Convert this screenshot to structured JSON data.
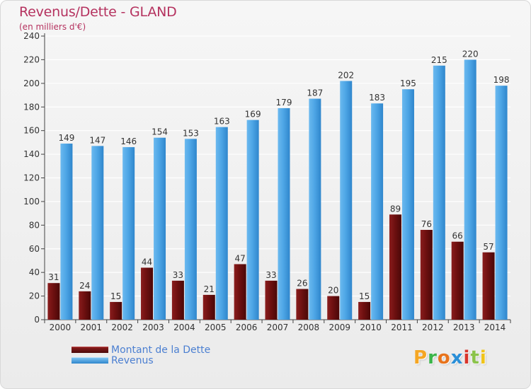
{
  "title": "Revenus/Dette - GLAND",
  "subtitle": "(en milliers d'€)",
  "legend": {
    "debt_label": "Montant de la Dette",
    "revenue_label": "Revenus"
  },
  "logo": {
    "letters": [
      "P",
      "r",
      "o",
      "x",
      "i",
      "t",
      "i"
    ],
    "colors": [
      "#f5a623",
      "#3bb54a",
      "#e8731c",
      "#2a8fd8",
      "#d9352b",
      "#8bc34a",
      "#f0c419"
    ]
  },
  "colors": {
    "debt": "#6e1010",
    "revenue": "#4ea6e6"
  },
  "chart_data": {
    "type": "bar",
    "categories": [
      "2000",
      "2001",
      "2002",
      "2003",
      "2004",
      "2005",
      "2006",
      "2007",
      "2008",
      "2009",
      "2010",
      "2011",
      "2012",
      "2013",
      "2014"
    ],
    "series": [
      {
        "name": "Montant de la Dette",
        "values": [
          31,
          24,
          15,
          44,
          33,
          21,
          47,
          33,
          26,
          20,
          15,
          89,
          76,
          66,
          57
        ]
      },
      {
        "name": "Revenus",
        "values": [
          149,
          147,
          146,
          154,
          153,
          163,
          169,
          179,
          187,
          202,
          183,
          195,
          215,
          220,
          198
        ]
      }
    ],
    "yticks": [
      0,
      20,
      40,
      60,
      80,
      100,
      120,
      140,
      160,
      180,
      200,
      220,
      240
    ],
    "ylim": [
      0,
      240
    ],
    "grid": true,
    "legend_position": "bottom-left"
  }
}
